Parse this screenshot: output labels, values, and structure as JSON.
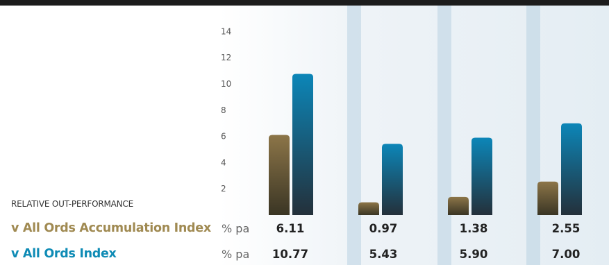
{
  "chart_data": {
    "type": "bar",
    "side_label": "RELATIVE OUT-PERFORMANCE",
    "y_ticks": [
      2,
      4,
      6,
      8,
      10,
      12,
      14
    ],
    "ylim": [
      0,
      14
    ],
    "categories": [
      "",
      "",
      "",
      ""
    ],
    "series": [
      {
        "name": "v All Ords Accumulation Index",
        "unit": "% pa",
        "values": [
          6.11,
          0.97,
          1.38,
          2.55
        ],
        "value_labels": [
          "6.11",
          "0.97",
          "1.38",
          "2.55"
        ],
        "label_color": "#a08a52",
        "bar_color_top": "#8c7548",
        "bar_color_bottom": "#3a3524"
      },
      {
        "name": "v All Ords Index",
        "unit": "% pa",
        "values": [
          10.77,
          5.43,
          5.9,
          7.0
        ],
        "value_labels": [
          "10.77",
          "5.43",
          "5.90",
          "7.00"
        ],
        "label_color": "#0e8bb5",
        "bar_color_top": "#0c86b8",
        "bar_color_bottom": "#24303a"
      }
    ]
  }
}
